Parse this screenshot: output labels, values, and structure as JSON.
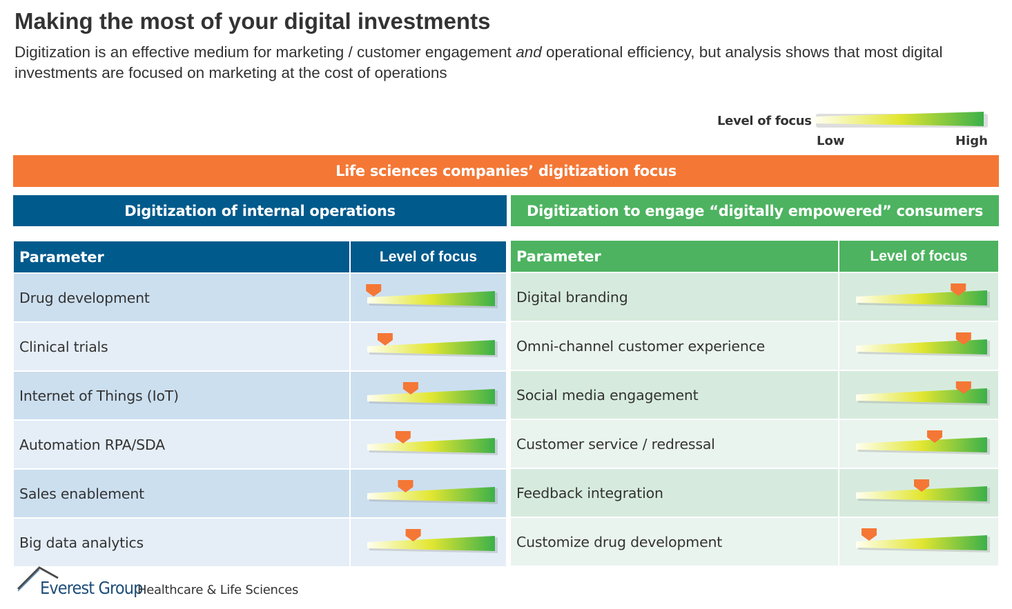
{
  "header": {
    "title": "Making the most of your digital investments",
    "subtitle_part1": "Digitization is an effective medium for marketing / customer engagement ",
    "subtitle_emphasis": "and",
    "subtitle_part2": " operational efficiency, but analysis shows that most digital investments are focused on marketing at the cost of operations"
  },
  "legend": {
    "label": "Level of focus",
    "low": "Low",
    "high": "High"
  },
  "banner": "Life sciences companies’ digitization focus",
  "sections": {
    "left": {
      "title": "Digitization of internal operations",
      "col_param": "Parameter",
      "col_focus": "Level of focus",
      "rows": [
        {
          "label": "Drug development",
          "focus": 0.05
        },
        {
          "label": "Clinical trials",
          "focus": 0.14
        },
        {
          "label": "Internet of Things (IoT)",
          "focus": 0.34
        },
        {
          "label": "Automation RPA/SDA",
          "focus": 0.28
        },
        {
          "label": "Sales enablement",
          "focus": 0.3
        },
        {
          "label": "Big data analytics",
          "focus": 0.36
        }
      ]
    },
    "right": {
      "title": "Digitization to engage “digitally empowered” consumers",
      "col_param": "Parameter",
      "col_focus": "Level of focus",
      "rows": [
        {
          "label": "Digital branding",
          "focus": 0.78
        },
        {
          "label": "Omni-channel customer experience",
          "focus": 0.82
        },
        {
          "label": "Social media engagement",
          "focus": 0.82
        },
        {
          "label": "Customer service / redressal",
          "focus": 0.6
        },
        {
          "label": "Feedback integration",
          "focus": 0.5
        },
        {
          "label": "Customize drug development",
          "focus": 0.1
        }
      ]
    }
  },
  "colors": {
    "marker": "#F47735",
    "bar_low": "#FFFFF0",
    "bar_mid": "#E2E631",
    "bar_high": "#3BB04A"
  },
  "footer": {
    "logo_name": "Everest Group",
    "logo_tagline": "Healthcare & Life Sciences"
  }
}
